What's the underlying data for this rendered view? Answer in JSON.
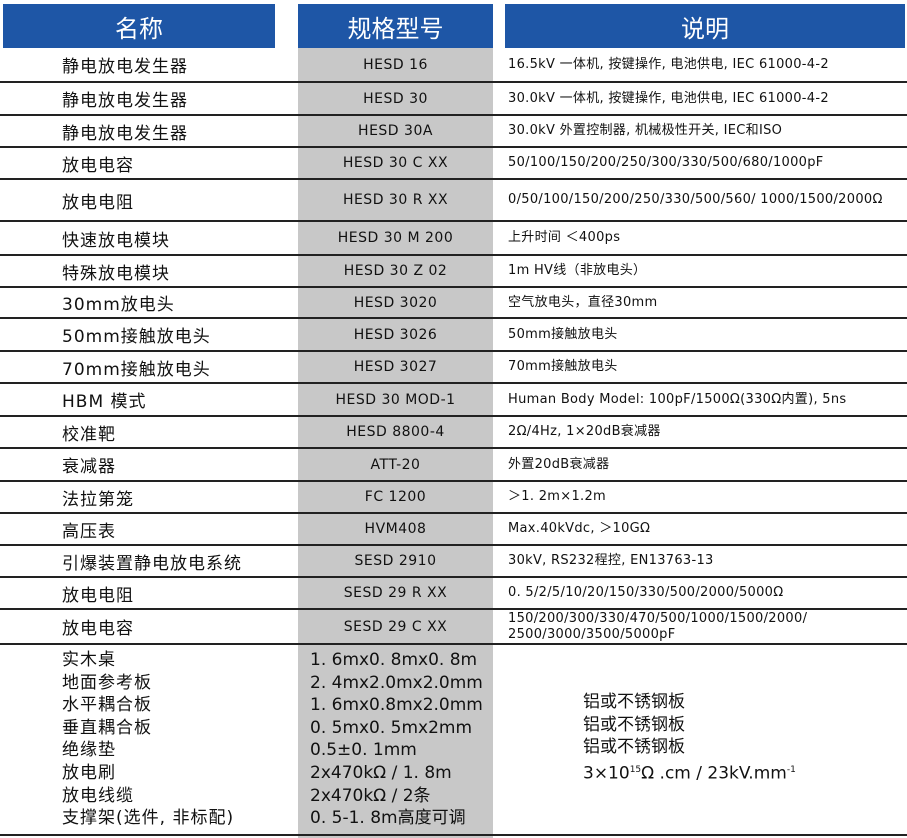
{
  "header": {
    "name": "名称",
    "model": "规格型号",
    "desc": "说明"
  },
  "rows": [
    {
      "name": "静电放电发生器",
      "model": "HESD 16",
      "desc": "16.5kV 一体机, 按键操作, 电池供电, IEC 61000-4-2"
    },
    {
      "name": "静电放电发生器",
      "model": "HESD 30",
      "desc": "30.0kV 一体机, 按键操作, 电池供电, IEC 61000-4-2"
    },
    {
      "name": "静电放电发生器",
      "model": "HESD 30A",
      "desc": "30.0kV 外置控制器, 机械极性开关, IEC和ISO"
    },
    {
      "name": "放电电容",
      "model": "HESD 30 C XX",
      "desc": "50/100/150/200/250/300/330/500/680/1000pF"
    },
    {
      "name": "放电电阻",
      "model": "HESD 30 R XX",
      "desc": "0/50/100/150/200/250/330/500/560/ 1000/1500/2000Ω"
    },
    {
      "name": "快速放电模块",
      "model": "HESD 30 M 200",
      "desc": "上升时间 ＜400ps"
    },
    {
      "name": "特殊放电模块",
      "model": "HESD 30 Z 02",
      "desc": "1m HV线（非放电头）"
    },
    {
      "name": "30mm放电头",
      "model": "HESD 3020",
      "desc": "空气放电头，直径30mm"
    },
    {
      "name": "50mm接触放电头",
      "model": "HESD 3026",
      "desc": "50mm接触放电头"
    },
    {
      "name": "70mm接触放电头",
      "model": "HESD 3027",
      "desc": "70mm接触放电头"
    },
    {
      "name": "HBM 模式",
      "model": "HESD 30 MOD-1",
      "desc": "Human Body Model: 100pF/1500Ω(330Ω内置), 5ns"
    },
    {
      "name": "校准靶",
      "model": "HESD 8800-4",
      "desc": "2Ω/4Hz, 1×20dB衰减器"
    },
    {
      "name": "衰减器",
      "model": "ATT-20",
      "desc": "外置20dB衰减器"
    },
    {
      "name": "法拉第笼",
      "model": "FC 1200",
      "desc": "＞1. 2m×1.2m"
    },
    {
      "name": "高压表",
      "model": "HVM408",
      "desc": "Max.40kVdc, ＞10GΩ"
    },
    {
      "name": "引爆装置静电放电系统",
      "model": "SESD 2910",
      "desc": "30kV, RS232程控, EN13763-13"
    },
    {
      "name": "放电电阻",
      "model": "SESD 29 R XX",
      "desc": "0. 5/2/5/10/20/150/330/500/2000/5000Ω"
    },
    {
      "name": "放电电容",
      "model": "SESD 29 C XX",
      "desc": "150/200/300/330/470/500/1000/1500/2000/ 2500/3000/3500/5000pF"
    }
  ],
  "accessories": {
    "names": [
      "实木桌",
      "地面参考板",
      "水平耦合板",
      "垂直耦合板",
      "绝缘垫",
      "放电刷",
      "放电线缆",
      "支撑架(选件, 非标配)"
    ],
    "specs": [
      "1. 6mx0. 8mx0. 8m",
      "2. 4mx2.0mx2.0mm",
      "1. 6mx0.8mx2.0mm",
      "0. 5mx0. 5mx2mm",
      "0.5±0. 1mm",
      "2x470kΩ / 1. 8m",
      "2x470kΩ / 2条",
      "0. 5-1. 8m高度可调"
    ],
    "notes": [
      "铝或不锈钢板",
      "铝或不锈钢板",
      "铝或不锈钢板"
    ],
    "resistivity": {
      "prefix": "3×10",
      "exp": "15",
      "mid": "Ω .cm / 23kV.mm",
      "exp2": "-1"
    }
  },
  "colors": {
    "header_bg": "#1e56a6",
    "model_col_bg": "#c8c8c8"
  }
}
